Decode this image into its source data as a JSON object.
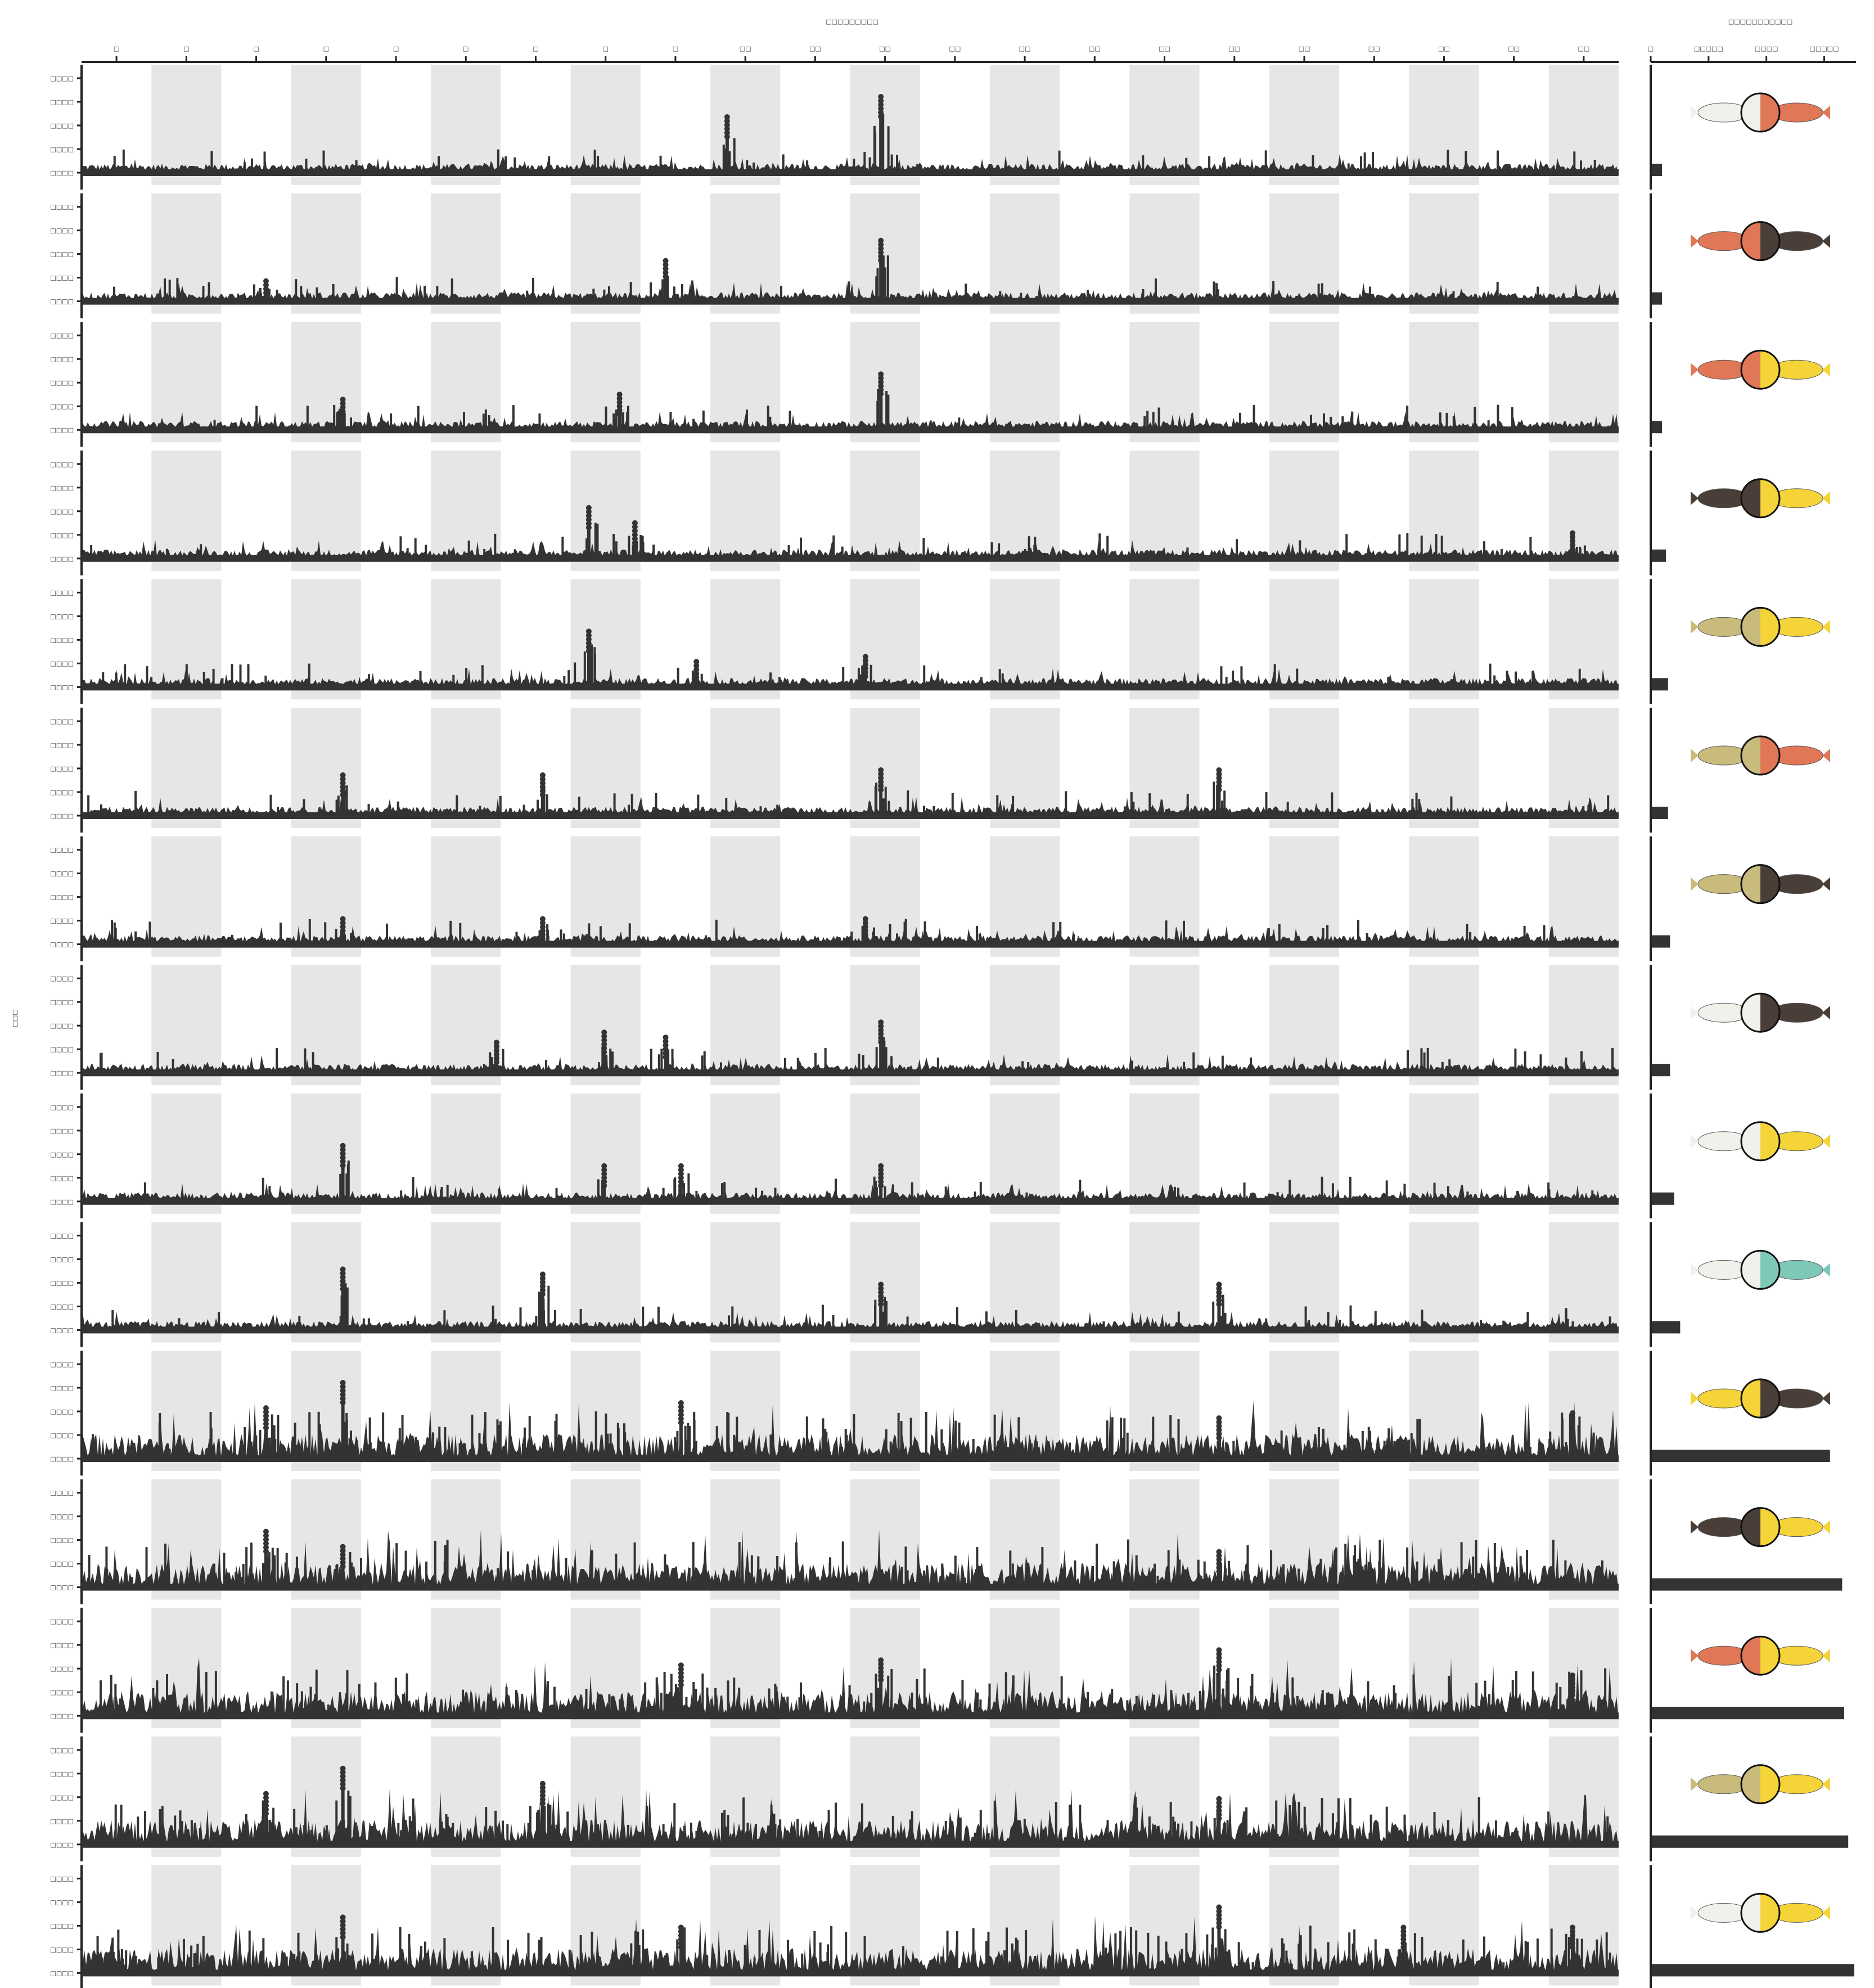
{
  "figure": {
    "manhattan_xlabel": "□□□□□□□□□",
    "bar_xlabel": "□□□□□□□□□□□",
    "ylabel": "□□□",
    "colors": {
      "marker": "#333333",
      "band": "#e6e6e6",
      "axis": "#222222",
      "white_fish": "#f2f0ea",
      "orange_fish": "#e07858",
      "black_fish": "#4a3f38",
      "yellow_fish": "#f5d43a",
      "teal_fish": "#7ec8b8",
      "olive_fish": "#c8bb7c"
    }
  },
  "chart_data": [
    {
      "type": "scatter",
      "name": "manhattan",
      "xlabel": "□□□□□□□□□",
      "ylabel": "□□□",
      "chromosome_labels": [
        "□",
        "□",
        "□",
        "□",
        "□",
        "□",
        "□",
        "□",
        "□",
        "□□",
        "□□",
        "□□",
        "□□",
        "□□",
        "□□",
        "□□",
        "□□",
        "□□",
        "□□",
        "□□",
        "□□",
        "□□"
      ],
      "ytick_labels": [
        "□□□□",
        "□□□□",
        "□□□□",
        "□□□□",
        "□□□□"
      ],
      "ylim": [
        0,
        1
      ],
      "shaded_bands": "alternate chromosomes shaded grey",
      "panels": [
        {
          "peaks": [
            [
              0.42,
              0.55
            ],
            [
              0.52,
              0.75
            ]
          ]
        },
        {
          "peaks": [
            [
              0.38,
              0.4
            ],
            [
              0.52,
              0.6
            ],
            [
              0.12,
              0.2
            ]
          ]
        },
        {
          "peaks": [
            [
              0.35,
              0.35
            ],
            [
              0.52,
              0.55
            ],
            [
              0.17,
              0.3
            ]
          ]
        },
        {
          "peaks": [
            [
              0.33,
              0.5
            ],
            [
              0.36,
              0.35
            ],
            [
              0.97,
              0.25
            ]
          ]
        },
        {
          "peaks": [
            [
              0.33,
              0.55
            ],
            [
              0.51,
              0.3
            ],
            [
              0.4,
              0.25
            ]
          ]
        },
        {
          "peaks": [
            [
              0.17,
              0.4
            ],
            [
              0.52,
              0.45
            ],
            [
              0.74,
              0.45
            ],
            [
              0.3,
              0.4
            ]
          ]
        },
        {
          "peaks": [
            [
              0.17,
              0.25
            ],
            [
              0.51,
              0.25
            ],
            [
              0.3,
              0.25
            ]
          ]
        },
        {
          "peaks": [
            [
              0.52,
              0.5
            ],
            [
              0.34,
              0.4
            ],
            [
              0.38,
              0.35
            ],
            [
              0.27,
              0.3
            ]
          ]
        },
        {
          "peaks": [
            [
              0.17,
              0.55
            ],
            [
              0.34,
              0.35
            ],
            [
              0.52,
              0.35
            ],
            [
              0.39,
              0.35
            ]
          ]
        },
        {
          "peaks": [
            [
              0.17,
              0.6
            ],
            [
              0.3,
              0.55
            ],
            [
              0.52,
              0.45
            ],
            [
              0.74,
              0.45
            ]
          ]
        },
        {
          "peaks": [
            [
              0.17,
              0.75
            ],
            [
              0.12,
              0.5
            ],
            [
              0.39,
              0.55
            ],
            [
              0.97,
              0.45
            ],
            [
              0.74,
              0.4
            ]
          ]
        },
        {
          "peaks": [
            [
              0.12,
              0.55
            ],
            [
              0.17,
              0.4
            ],
            [
              0.74,
              0.35
            ]
          ]
        },
        {
          "peaks": [
            [
              0.52,
              0.55
            ],
            [
              0.74,
              0.65
            ],
            [
              0.39,
              0.5
            ],
            [
              0.97,
              0.4
            ]
          ]
        },
        {
          "peaks": [
            [
              0.17,
              0.75
            ],
            [
              0.12,
              0.5
            ],
            [
              0.3,
              0.6
            ],
            [
              0.74,
              0.45
            ]
          ]
        },
        {
          "peaks": [
            [
              0.74,
              0.65
            ],
            [
              0.17,
              0.55
            ],
            [
              0.39,
              0.45
            ],
            [
              0.86,
              0.45
            ],
            [
              0.97,
              0.45
            ]
          ]
        }
      ]
    },
    {
      "type": "bar",
      "name": "divergence_bars",
      "xlabel": "□□□□□□□□□□□",
      "xtick_labels": [
        "□",
        "□□□□□",
        "□□□□",
        "□□□□□"
      ],
      "xlim": [
        0,
        1.0
      ],
      "values": [
        0.05,
        0.05,
        0.05,
        0.07,
        0.08,
        0.08,
        0.09,
        0.09,
        0.11,
        0.14,
        0.88,
        0.94,
        0.95,
        0.97,
        1.0
      ],
      "pairs": [
        [
          "white_fish",
          "orange_fish"
        ],
        [
          "orange_fish",
          "black_fish"
        ],
        [
          "orange_fish",
          "yellow_fish"
        ],
        [
          "black_fish",
          "yellow_fish"
        ],
        [
          "olive_fish",
          "yellow_fish"
        ],
        [
          "olive_fish",
          "orange_fish"
        ],
        [
          "olive_fish",
          "black_fish"
        ],
        [
          "white_fish",
          "black_fish"
        ],
        [
          "white_fish",
          "yellow_fish"
        ],
        [
          "white_fish",
          "teal_fish"
        ],
        [
          "yellow_fish",
          "black_fish"
        ],
        [
          "black_fish",
          "yellow_fish"
        ],
        [
          "orange_fish",
          "yellow_fish"
        ],
        [
          "olive_fish",
          "yellow_fish"
        ],
        [
          "white_fish",
          "yellow_fish"
        ]
      ]
    }
  ]
}
